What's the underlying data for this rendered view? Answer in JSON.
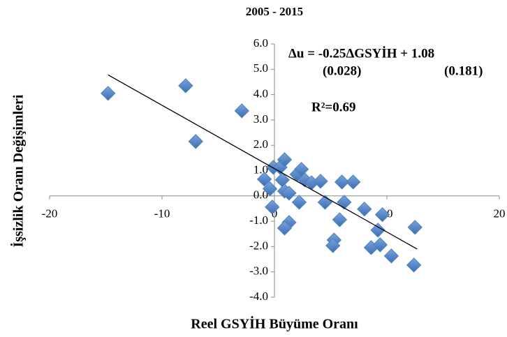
{
  "chart_data": {
    "type": "scatter",
    "title": "2005 - 2015",
    "x_label": "Reel GSYİH Büyüme Oranı",
    "y_label": "İşsizlik Oranı Değişimleri",
    "annotations": [
      "Δu  = -0.25ΔGSYİH + 1.08",
      "(0.028)",
      "(0.181)",
      "R²=0.69"
    ],
    "xlim": [
      -20,
      20
    ],
    "ylim": [
      -4,
      6
    ],
    "xticks": [
      -20,
      -10,
      0,
      10,
      20
    ],
    "yticks": [
      {
        "value": -4,
        "label": "-4.0"
      },
      {
        "value": -3,
        "label": "-3.0"
      },
      {
        "value": -2,
        "label": "-2.0"
      },
      {
        "value": -1,
        "label": "-1.0"
      },
      {
        "value": 0,
        "label": "0.0"
      },
      {
        "value": 1,
        "label": "1.0"
      },
      {
        "value": 2,
        "label": "2.0"
      },
      {
        "value": 3,
        "label": "3.0"
      },
      {
        "value": 4,
        "label": "4.0"
      },
      {
        "value": 5,
        "label": "5.0"
      },
      {
        "value": 6,
        "label": "6.0"
      }
    ],
    "color": "#4f81bd",
    "trendline": {
      "color": "#000000",
      "x": [
        -14.8,
        12.7
      ],
      "y": [
        4.78,
        -2.1
      ]
    },
    "series": [
      {
        "x": [
          -14.8,
          -7.9,
          -7.0,
          -2.9,
          -0.9,
          -0.4,
          -0.2,
          -0.1,
          0.5,
          0.9,
          0.7,
          0.9,
          1.3,
          1.3,
          0.9,
          2.0,
          2.4,
          2.7,
          2.2,
          3.3,
          4.1,
          4.5,
          5.3,
          5.2,
          5.8,
          6.0,
          6.2,
          7.0,
          8.0,
          8.6,
          9.2,
          9.4,
          9.6,
          10.4,
          12.5,
          12.4
        ],
        "values": [
          4.05,
          4.35,
          2.15,
          3.36,
          0.66,
          0.28,
          -0.44,
          1.13,
          1.13,
          1.43,
          0.63,
          0.19,
          0.11,
          -1.05,
          -1.27,
          0.85,
          1.05,
          0.63,
          -0.25,
          0.52,
          0.58,
          -0.25,
          -1.74,
          -1.96,
          -0.94,
          0.55,
          -0.25,
          0.55,
          -0.52,
          -2.04,
          -1.35,
          -1.93,
          -0.74,
          -2.37,
          -1.24,
          -2.73
        ]
      }
    ]
  }
}
